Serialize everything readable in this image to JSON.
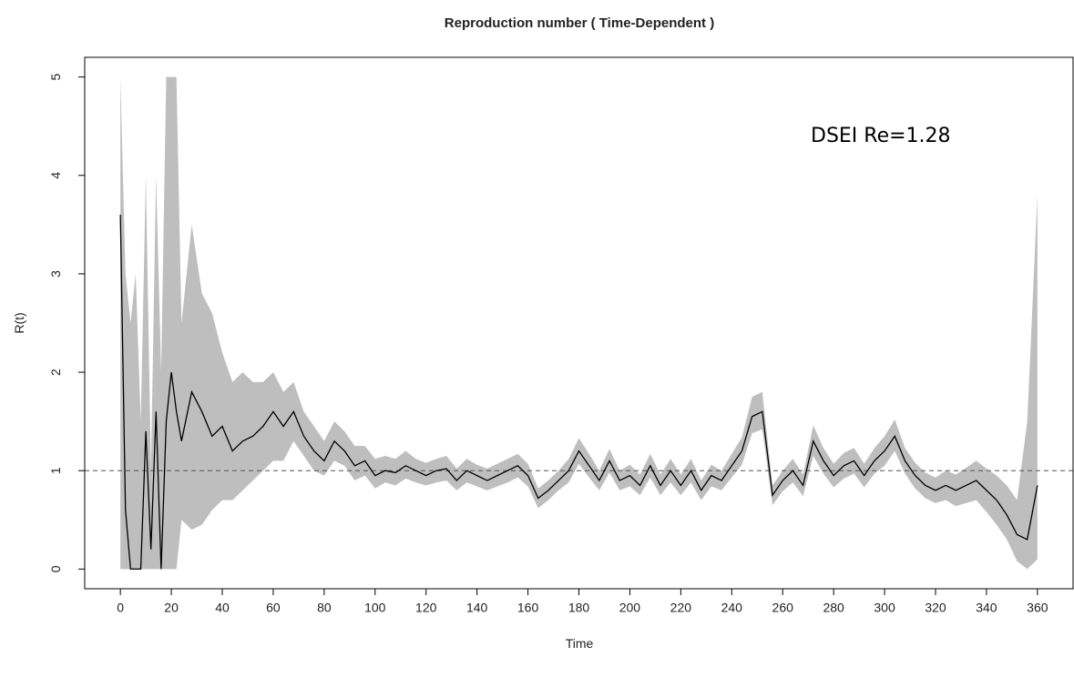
{
  "chart_data": {
    "type": "line",
    "title": "Reproduction number ( Time-Dependent )",
    "xlabel": "Time",
    "ylabel": "R(t)",
    "annotation": "DSEI Re=1.28",
    "hline": 1,
    "color": "#000000",
    "band_color": "#bebebe",
    "hline_color": "#555555",
    "xlim": [
      -14,
      374
    ],
    "ylim": [
      -0.2,
      5.2
    ],
    "xticks": [
      0,
      20,
      40,
      60,
      80,
      100,
      120,
      140,
      160,
      180,
      200,
      220,
      240,
      260,
      280,
      300,
      320,
      340,
      360
    ],
    "yticks": [
      0,
      1,
      2,
      3,
      4,
      5
    ],
    "x": [
      0,
      2,
      4,
      6,
      8,
      10,
      12,
      14,
      16,
      18,
      20,
      22,
      24,
      28,
      32,
      36,
      40,
      44,
      48,
      52,
      56,
      60,
      64,
      68,
      72,
      76,
      80,
      84,
      88,
      92,
      96,
      100,
      104,
      108,
      112,
      116,
      120,
      124,
      128,
      132,
      136,
      140,
      144,
      148,
      152,
      156,
      160,
      164,
      168,
      172,
      176,
      180,
      184,
      188,
      192,
      196,
      200,
      204,
      208,
      212,
      216,
      220,
      224,
      228,
      232,
      236,
      240,
      244,
      248,
      252,
      256,
      260,
      264,
      268,
      272,
      276,
      280,
      284,
      288,
      292,
      296,
      300,
      304,
      308,
      312,
      316,
      320,
      324,
      328,
      332,
      336,
      340,
      344,
      348,
      352,
      356,
      360
    ],
    "values": [
      3.6,
      0.6,
      0,
      0,
      0,
      1.4,
      0.2,
      1.6,
      0,
      1.5,
      2.0,
      1.6,
      1.3,
      1.8,
      1.6,
      1.35,
      1.45,
      1.2,
      1.3,
      1.35,
      1.45,
      1.6,
      1.45,
      1.6,
      1.35,
      1.2,
      1.1,
      1.3,
      1.2,
      1.05,
      1.1,
      0.95,
      1.0,
      0.98,
      1.05,
      1.0,
      0.95,
      1.0,
      1.02,
      0.9,
      1.0,
      0.95,
      0.9,
      0.95,
      1.0,
      1.05,
      0.95,
      0.72,
      0.8,
      0.9,
      1.0,
      1.2,
      1.05,
      0.9,
      1.1,
      0.9,
      0.95,
      0.85,
      1.05,
      0.85,
      1.0,
      0.85,
      1.0,
      0.8,
      0.95,
      0.9,
      1.05,
      1.2,
      1.55,
      1.6,
      0.75,
      0.9,
      1.0,
      0.85,
      1.3,
      1.1,
      0.95,
      1.05,
      1.1,
      0.95,
      1.1,
      1.2,
      1.35,
      1.1,
      0.95,
      0.85,
      0.8,
      0.85,
      0.8,
      0.85,
      0.9,
      0.8,
      0.7,
      0.55,
      0.35,
      0.3,
      0.85
    ],
    "lower": [
      0,
      0,
      0,
      0,
      0,
      0,
      0,
      0,
      0,
      0,
      0,
      0,
      0.5,
      0.4,
      0.45,
      0.6,
      0.7,
      0.7,
      0.8,
      0.9,
      1.0,
      1.1,
      1.1,
      1.3,
      1.15,
      1.0,
      0.95,
      1.1,
      1.05,
      0.9,
      0.95,
      0.82,
      0.88,
      0.85,
      0.92,
      0.88,
      0.85,
      0.88,
      0.9,
      0.8,
      0.88,
      0.84,
      0.8,
      0.84,
      0.88,
      0.93,
      0.84,
      0.62,
      0.7,
      0.8,
      0.88,
      1.07,
      0.93,
      0.8,
      0.98,
      0.8,
      0.84,
      0.75,
      0.93,
      0.75,
      0.88,
      0.75,
      0.88,
      0.7,
      0.84,
      0.8,
      0.93,
      1.06,
      1.38,
      1.42,
      0.65,
      0.79,
      0.88,
      0.74,
      1.15,
      0.97,
      0.83,
      0.92,
      0.97,
      0.83,
      0.97,
      1.05,
      1.2,
      0.97,
      0.82,
      0.72,
      0.67,
      0.7,
      0.64,
      0.67,
      0.7,
      0.58,
      0.45,
      0.3,
      0.08,
      0.0,
      0.1
    ],
    "upper": [
      5,
      3,
      2.5,
      3,
      1.5,
      4,
      1,
      4,
      2,
      5,
      5,
      5,
      2.5,
      3.5,
      2.8,
      2.6,
      2.2,
      1.9,
      2.0,
      1.9,
      1.9,
      2.0,
      1.8,
      1.9,
      1.6,
      1.45,
      1.3,
      1.5,
      1.4,
      1.25,
      1.25,
      1.12,
      1.15,
      1.12,
      1.2,
      1.12,
      1.08,
      1.12,
      1.15,
      1.02,
      1.12,
      1.06,
      1.02,
      1.07,
      1.12,
      1.17,
      1.07,
      0.82,
      0.9,
      1.0,
      1.12,
      1.33,
      1.17,
      1.0,
      1.22,
      1.0,
      1.06,
      0.96,
      1.17,
      0.96,
      1.12,
      0.96,
      1.12,
      0.9,
      1.06,
      1.0,
      1.17,
      1.34,
      1.75,
      1.8,
      0.85,
      1.0,
      1.12,
      0.96,
      1.46,
      1.23,
      1.07,
      1.18,
      1.23,
      1.07,
      1.23,
      1.35,
      1.52,
      1.23,
      1.08,
      0.98,
      0.93,
      1.0,
      0.96,
      1.03,
      1.1,
      1.02,
      0.95,
      0.85,
      0.7,
      1.5,
      3.8
    ]
  }
}
